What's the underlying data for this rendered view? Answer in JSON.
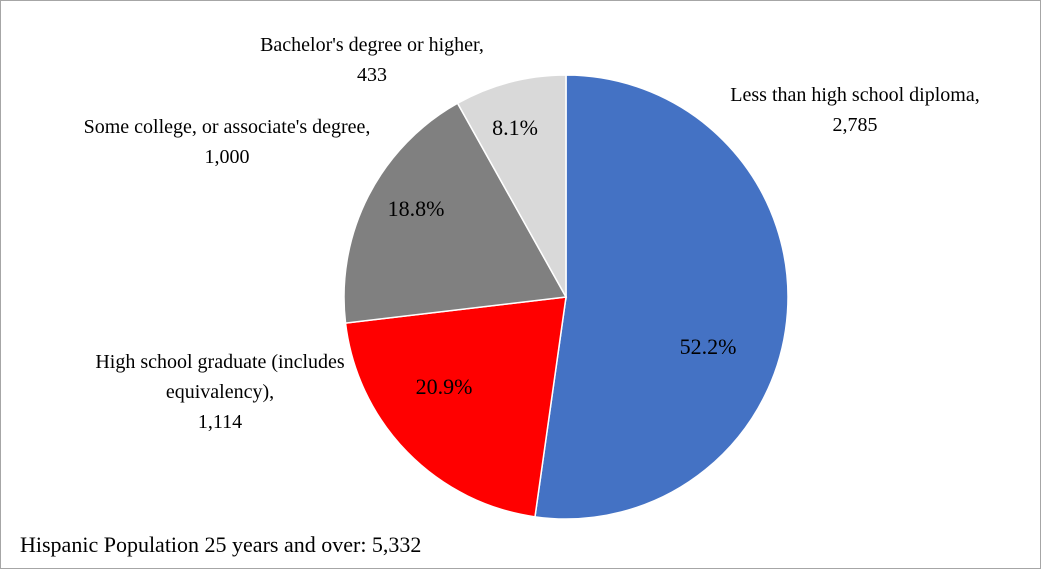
{
  "chart_data": {
    "type": "pie",
    "categories": [
      "Less than high school diploma,",
      "High school graduate (includes equivalency),",
      "Some college, or associate's degree,",
      "Bachelor's degree or higher,"
    ],
    "values": [
      2785,
      1114,
      1000,
      433
    ],
    "value_labels": [
      "2,785",
      "1,114",
      "1,000",
      "433"
    ],
    "percents": [
      52.2,
      20.9,
      18.8,
      8.1
    ],
    "percent_labels": [
      "52.2%",
      "20.9%",
      "18.8%",
      "8.1%"
    ],
    "colors": [
      "#4472c4",
      "#ff0000",
      "#808080",
      "#d9d9d9"
    ],
    "note": "Hispanic Population 25 years and over: 5,332"
  }
}
